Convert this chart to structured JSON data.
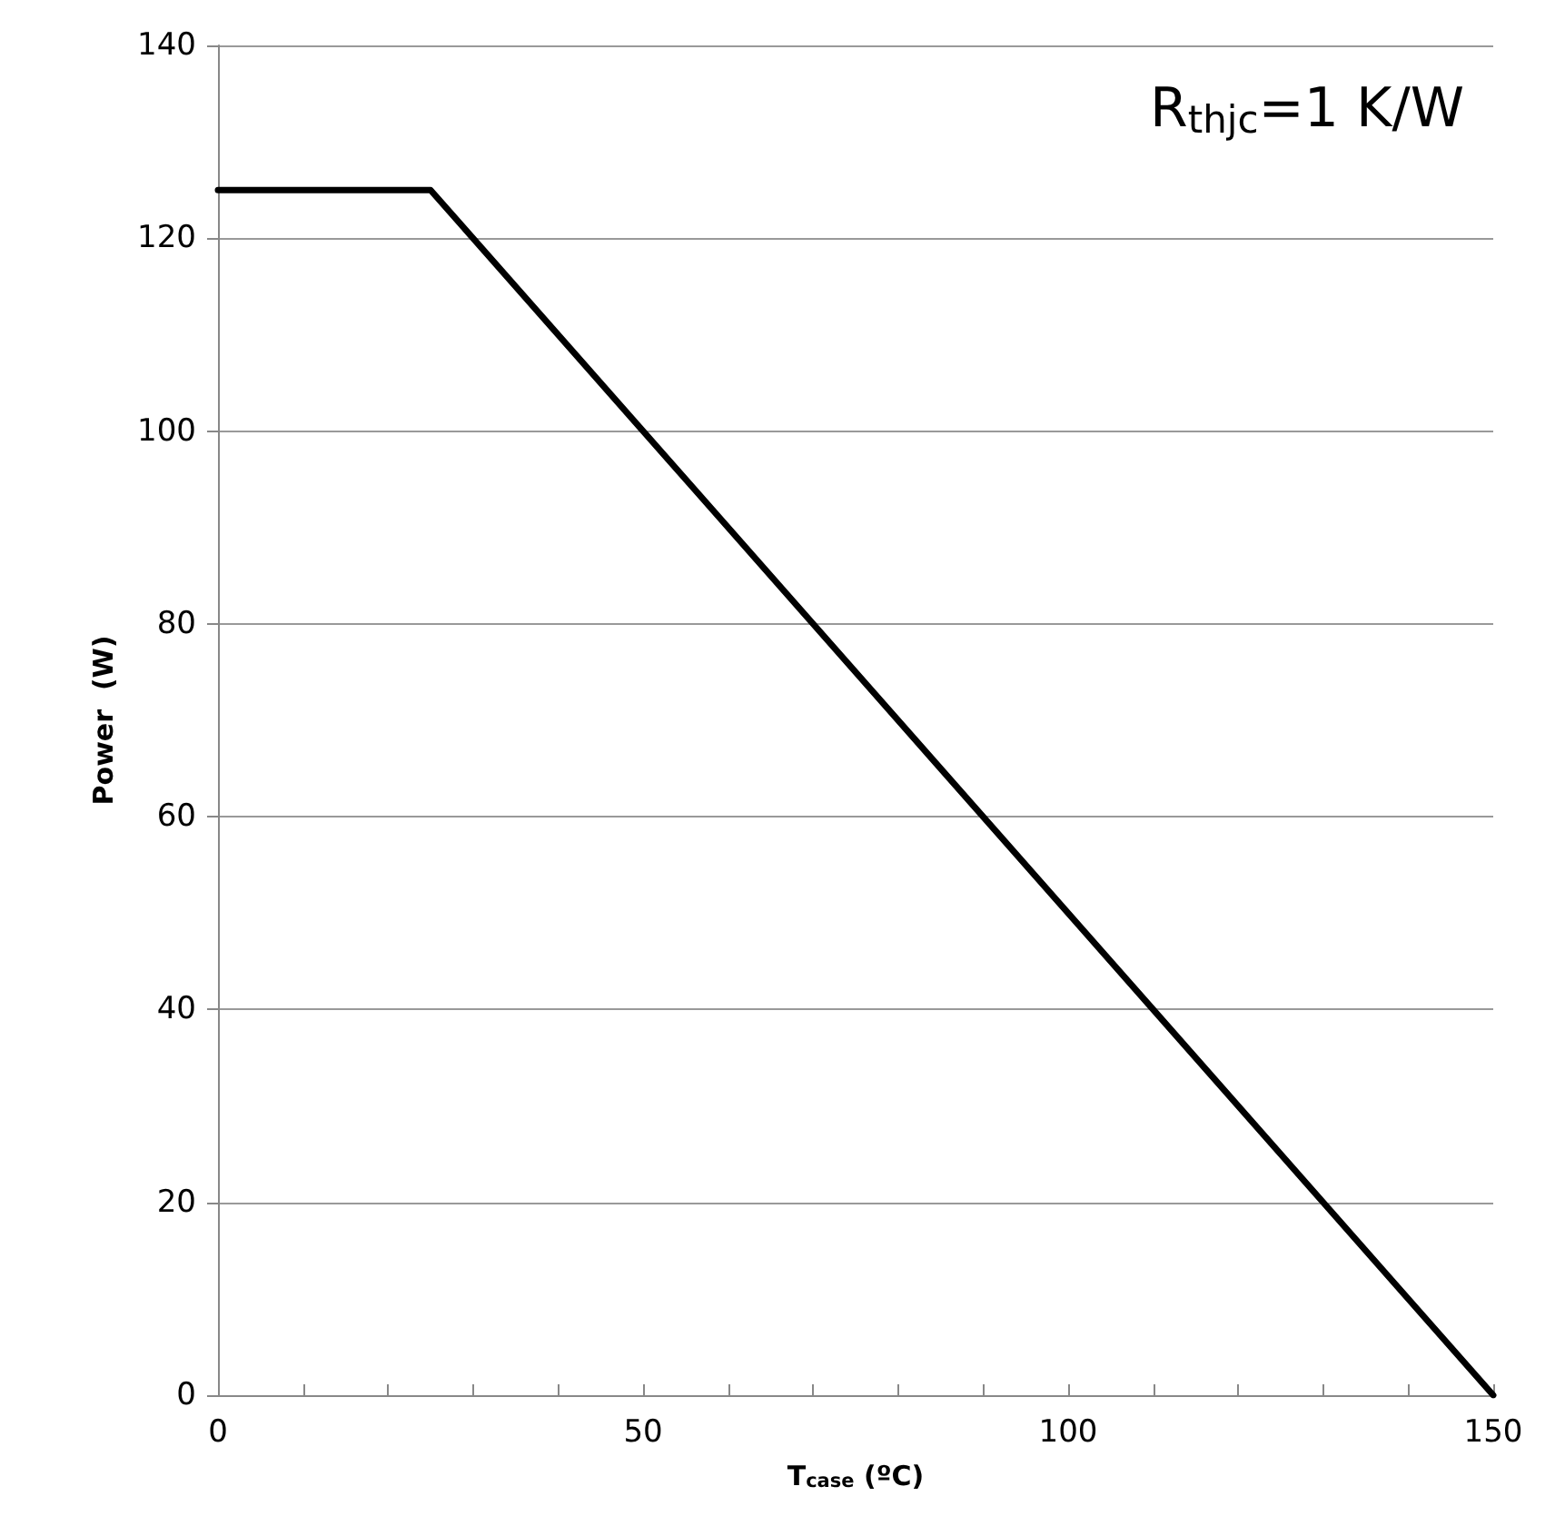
{
  "chart_data": {
    "type": "line",
    "xlabel": "T$_{case}$ (ºC)",
    "ylabel": "Power  (W)",
    "annotations": [
      "R$_{thjc}$=1 K/W"
    ],
    "x": [
      0,
      25,
      150
    ],
    "series": [
      {
        "color": "#000000",
        "values": [
          125,
          125,
          0
        ]
      }
    ],
    "xlim": [
      0,
      150
    ],
    "xticks": [
      0,
      {
        "value": 10,
        "label": null
      },
      {
        "value": 20,
        "label": null
      },
      {
        "value": 30,
        "label": null
      },
      {
        "value": 40,
        "label": null
      },
      50,
      {
        "value": 60,
        "label": null
      },
      {
        "value": 70,
        "label": null
      },
      {
        "value": 80,
        "label": null
      },
      {
        "value": 90,
        "label": null
      },
      100,
      {
        "value": 110,
        "label": null
      },
      {
        "value": 120,
        "label": null
      },
      {
        "value": 130,
        "label": null
      },
      {
        "value": 140,
        "label": null
      },
      150
    ],
    "ylim": [
      0,
      140
    ],
    "yticks": [
      0,
      20,
      40,
      60,
      80,
      100,
      120,
      140
    ],
    "grid": "y",
    "marker": "none",
    "line_style": "solid"
  }
}
